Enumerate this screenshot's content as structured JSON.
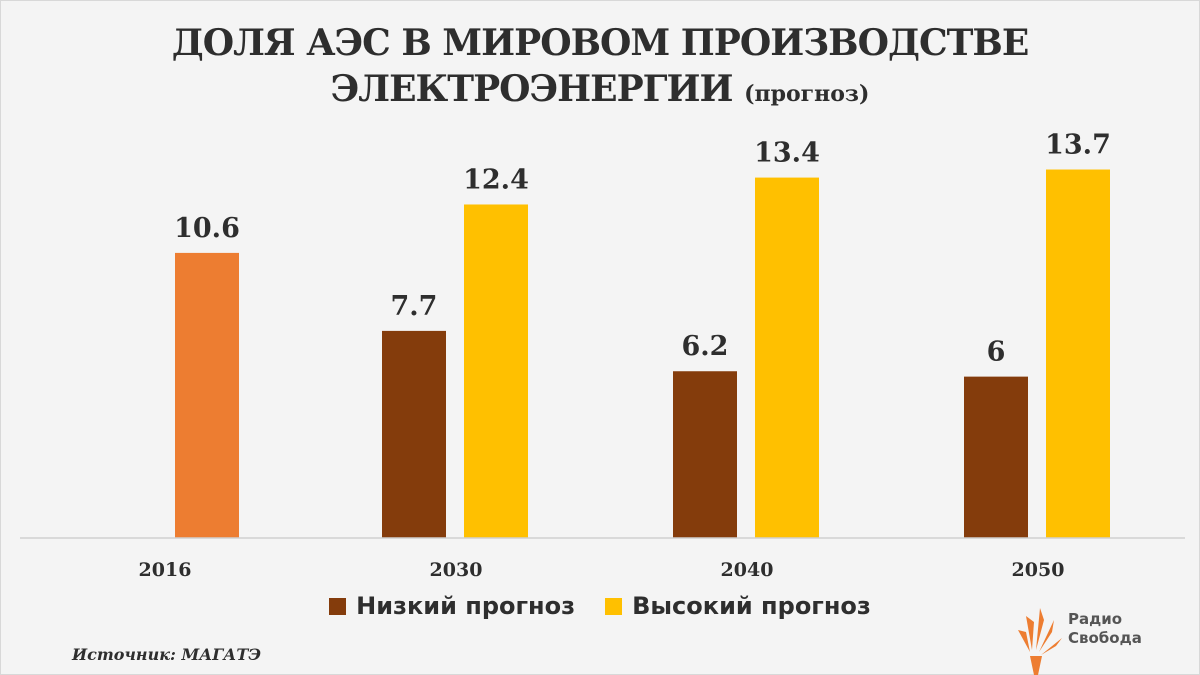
{
  "title_line1": "ДОЛЯ АЭС В МИРОВОМ ПРОИЗВОДСТВЕ",
  "title_line2": "ЭЛЕКТРОЭНЕРГИИ",
  "title_suffix": "(прогноз)",
  "source": "Источник: МАГАТЭ",
  "logo": {
    "line1": "Радио",
    "line2": "Свобода",
    "icon": "rfe-rl-torch-icon"
  },
  "colors": {
    "actual": "#ed7d31",
    "low": "#843c0c",
    "high": "#ffc000"
  },
  "chart_data": {
    "type": "bar",
    "categories": [
      "2016",
      "2030",
      "2040",
      "2050"
    ],
    "series": [
      {
        "key": "actual",
        "values": [
          10.6,
          null,
          null,
          null
        ]
      },
      {
        "key": "low",
        "name": "Низкий прогноз",
        "values": [
          null,
          7.7,
          6.2,
          6
        ]
      },
      {
        "key": "high",
        "name": "Высокий прогноз",
        "values": [
          null,
          12.4,
          13.4,
          13.7
        ]
      }
    ],
    "ylim": [
      0,
      14.5
    ],
    "legend": [
      "Низкий прогноз",
      "Высокий прогноз"
    ],
    "legend_position": "bottom"
  }
}
